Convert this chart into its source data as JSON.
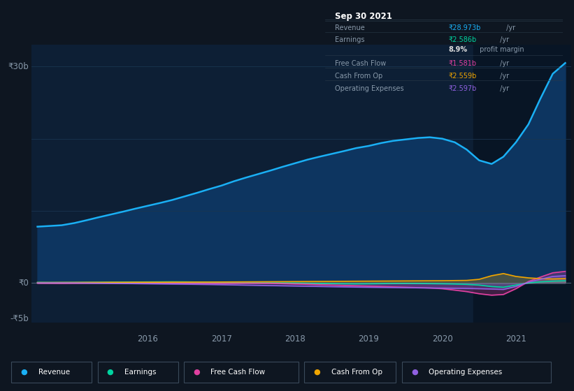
{
  "bg_color": "#0e1621",
  "plot_bg_color": "#0d1f35",
  "highlight_bg_color": "#081525",
  "grid_color": "#1a3550",
  "text_color": "#8899aa",
  "table_bg": "#080e1a",
  "table_border": "#2a3a4a",
  "series": {
    "Revenue": {
      "color": "#1ab0f5",
      "fill_color": "#0d3560"
    },
    "Earnings": {
      "color": "#00d4a0",
      "fill_color": "#00d4a020"
    },
    "Free Cash Flow": {
      "color": "#e040a0",
      "fill_color": "#e040a020"
    },
    "Cash From Op": {
      "color": "#f0a500",
      "fill_color": "#f0a50020"
    },
    "Operating Expenses": {
      "color": "#9060e0",
      "fill_color": "#9060e020"
    }
  },
  "x_years": [
    2014.5,
    2014.67,
    2014.83,
    2015.0,
    2015.17,
    2015.33,
    2015.5,
    2015.67,
    2015.83,
    2016.0,
    2016.17,
    2016.33,
    2016.5,
    2016.67,
    2016.83,
    2017.0,
    2017.17,
    2017.33,
    2017.5,
    2017.67,
    2017.83,
    2018.0,
    2018.17,
    2018.33,
    2018.5,
    2018.67,
    2018.83,
    2019.0,
    2019.17,
    2019.33,
    2019.5,
    2019.67,
    2019.83,
    2020.0,
    2020.17,
    2020.33,
    2020.5,
    2020.67,
    2020.83,
    2021.0,
    2021.17,
    2021.33,
    2021.5,
    2021.67
  ],
  "revenue": [
    7.8,
    7.9,
    8.0,
    8.3,
    8.7,
    9.1,
    9.5,
    9.9,
    10.3,
    10.7,
    11.1,
    11.5,
    12.0,
    12.5,
    13.0,
    13.5,
    14.1,
    14.6,
    15.1,
    15.6,
    16.1,
    16.6,
    17.1,
    17.5,
    17.9,
    18.3,
    18.7,
    19.0,
    19.4,
    19.7,
    19.9,
    20.1,
    20.2,
    20.0,
    19.5,
    18.5,
    17.0,
    16.5,
    17.5,
    19.5,
    22.0,
    25.5,
    29.0,
    30.5
  ],
  "earnings": [
    0.08,
    0.07,
    0.07,
    0.08,
    0.09,
    0.1,
    0.11,
    0.12,
    0.13,
    0.14,
    0.15,
    0.16,
    0.15,
    0.13,
    0.12,
    0.1,
    0.08,
    0.05,
    0.03,
    0.02,
    0.0,
    -0.02,
    -0.05,
    -0.08,
    -0.1,
    -0.12,
    -0.13,
    -0.12,
    -0.1,
    -0.08,
    -0.07,
    -0.08,
    -0.1,
    -0.12,
    -0.15,
    -0.2,
    -0.3,
    -0.5,
    -0.6,
    -0.3,
    0.0,
    0.15,
    0.25,
    0.3
  ],
  "free_cash_flow": [
    -0.05,
    -0.06,
    -0.07,
    -0.06,
    -0.05,
    -0.04,
    -0.05,
    -0.06,
    -0.07,
    -0.06,
    -0.05,
    -0.04,
    -0.05,
    -0.06,
    -0.07,
    -0.05,
    -0.04,
    -0.03,
    -0.04,
    -0.05,
    -0.1,
    -0.15,
    -0.2,
    -0.25,
    -0.3,
    -0.35,
    -0.4,
    -0.45,
    -0.5,
    -0.55,
    -0.6,
    -0.65,
    -0.7,
    -0.8,
    -1.0,
    -1.2,
    -1.5,
    -1.7,
    -1.6,
    -0.8,
    0.2,
    0.8,
    1.4,
    1.6
  ],
  "cash_from_op": [
    0.06,
    0.06,
    0.07,
    0.07,
    0.08,
    0.08,
    0.09,
    0.09,
    0.1,
    0.1,
    0.1,
    0.11,
    0.11,
    0.12,
    0.12,
    0.13,
    0.14,
    0.15,
    0.16,
    0.17,
    0.18,
    0.19,
    0.2,
    0.21,
    0.22,
    0.23,
    0.24,
    0.25,
    0.26,
    0.27,
    0.28,
    0.29,
    0.3,
    0.31,
    0.33,
    0.35,
    0.5,
    1.0,
    1.3,
    0.9,
    0.7,
    0.6,
    0.55,
    0.6
  ],
  "operating_expenses": [
    0.01,
    0.01,
    0.01,
    0.0,
    -0.02,
    -0.04,
    -0.06,
    -0.08,
    -0.1,
    -0.12,
    -0.14,
    -0.16,
    -0.18,
    -0.2,
    -0.22,
    -0.25,
    -0.28,
    -0.31,
    -0.34,
    -0.37,
    -0.4,
    -0.43,
    -0.46,
    -0.49,
    -0.52,
    -0.55,
    -0.58,
    -0.6,
    -0.62,
    -0.64,
    -0.66,
    -0.68,
    -0.7,
    -0.72,
    -0.74,
    -0.76,
    -0.8,
    -0.85,
    -0.9,
    -0.5,
    0.1,
    0.5,
    0.9,
    1.0
  ],
  "highlight_start": 2020.42,
  "highlight_end": 2021.75,
  "xmin": 2014.42,
  "xmax": 2021.75,
  "ymin": -5.5,
  "ymax": 33,
  "xticks": [
    2016,
    2017,
    2018,
    2019,
    2020,
    2021
  ],
  "ytick_labels": [
    {
      "value": 30,
      "label": "₹30b"
    },
    {
      "value": 0,
      "label": "₹0"
    },
    {
      "value": -5,
      "label": "-₹5b"
    }
  ],
  "table_data": {
    "date": "Sep 30 2021",
    "rows": [
      {
        "label": "Revenue",
        "value": "₹28.973b",
        "suffix": " /yr",
        "value_color": "#1ab0f5",
        "label_color": "#8899aa"
      },
      {
        "label": "Earnings",
        "value": "₹2.586b",
        "suffix": " /yr",
        "value_color": "#00d4a0",
        "label_color": "#8899aa"
      },
      {
        "label": "",
        "value": "8.9%",
        "suffix": " profit margin",
        "value_color": "#dddddd",
        "label_color": "#8899aa"
      },
      {
        "label": "Free Cash Flow",
        "value": "₹1.581b",
        "suffix": " /yr",
        "value_color": "#e040a0",
        "label_color": "#8899aa"
      },
      {
        "label": "Cash From Op",
        "value": "₹2.559b",
        "suffix": " /yr",
        "value_color": "#f0a500",
        "label_color": "#8899aa"
      },
      {
        "label": "Operating Expenses",
        "value": "₹2.597b",
        "suffix": " /yr",
        "value_color": "#9060e0",
        "label_color": "#8899aa"
      }
    ]
  },
  "legend_items": [
    {
      "label": "Revenue",
      "color": "#1ab0f5"
    },
    {
      "label": "Earnings",
      "color": "#00d4a0"
    },
    {
      "label": "Free Cash Flow",
      "color": "#e040a0"
    },
    {
      "label": "Cash From Op",
      "color": "#f0a500"
    },
    {
      "label": "Operating Expenses",
      "color": "#9060e0"
    }
  ]
}
